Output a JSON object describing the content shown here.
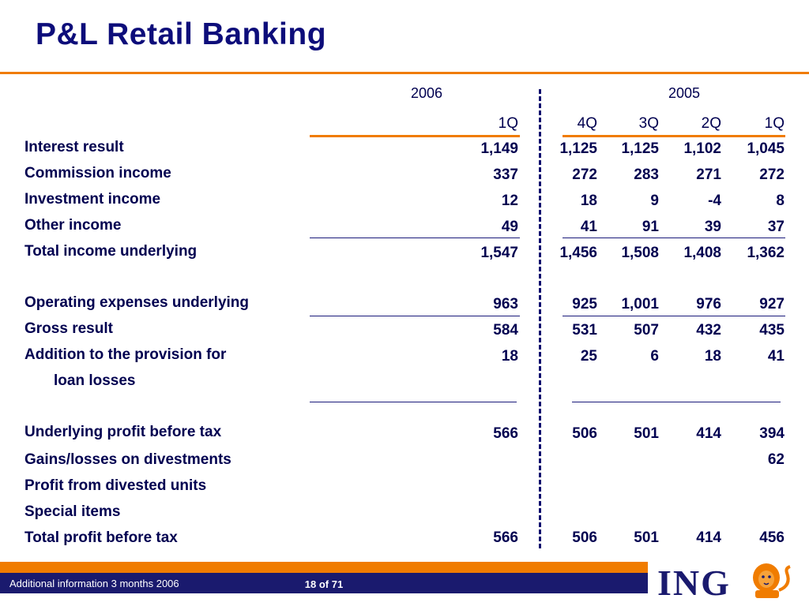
{
  "title": "P&L Retail Banking",
  "year_headers": [
    "2006",
    "2005"
  ],
  "quarter_headers": [
    "1Q",
    "4Q",
    "3Q",
    "2Q",
    "1Q"
  ],
  "rows": [
    {
      "label": "Interest result",
      "values": [
        "1,149",
        "1,125",
        "1,125",
        "1,102",
        "1,045"
      ]
    },
    {
      "label": "Commission income",
      "values": [
        "337",
        "272",
        "283",
        "271",
        "272"
      ]
    },
    {
      "label": "Investment income",
      "values": [
        "12",
        "18",
        "9",
        "-4",
        "8"
      ]
    },
    {
      "label": "Other income",
      "values": [
        "49",
        "41",
        "91",
        "39",
        "37"
      ]
    },
    {
      "label": "Total income underlying",
      "values": [
        "1,547",
        "1,456",
        "1,508",
        "1,408",
        "1,362"
      ]
    },
    {
      "label": "Operating expenses underlying",
      "values": [
        "963",
        "925",
        "1,001",
        "976",
        "927"
      ]
    },
    {
      "label": "Gross result",
      "values": [
        "584",
        "531",
        "507",
        "432",
        "435"
      ]
    },
    {
      "label": "Addition to the provision for",
      "label2": "loan losses",
      "values": [
        "18",
        "25",
        "6",
        "18",
        "41"
      ]
    },
    {
      "label": "Underlying profit before tax",
      "values": [
        "566",
        "506",
        "501",
        "414",
        "394"
      ]
    },
    {
      "label": "Gains/losses on divestments",
      "values": [
        "",
        "",
        "",
        "",
        "62"
      ]
    },
    {
      "label": "Profit from divested units",
      "values": [
        "",
        "",
        "",
        "",
        ""
      ]
    },
    {
      "label": "Special items",
      "values": [
        "",
        "",
        "",
        "",
        ""
      ]
    },
    {
      "label": "Total profit before tax",
      "values": [
        "566",
        "506",
        "501",
        "414",
        "456"
      ]
    }
  ],
  "footer": {
    "left": "Additional information 3 months 2006",
    "page": "18 of 71"
  },
  "logo": {
    "text": "ING",
    "icon": "lion-icon"
  },
  "colors": {
    "accent": "#f07c00",
    "navy": "#1a1a6e"
  }
}
